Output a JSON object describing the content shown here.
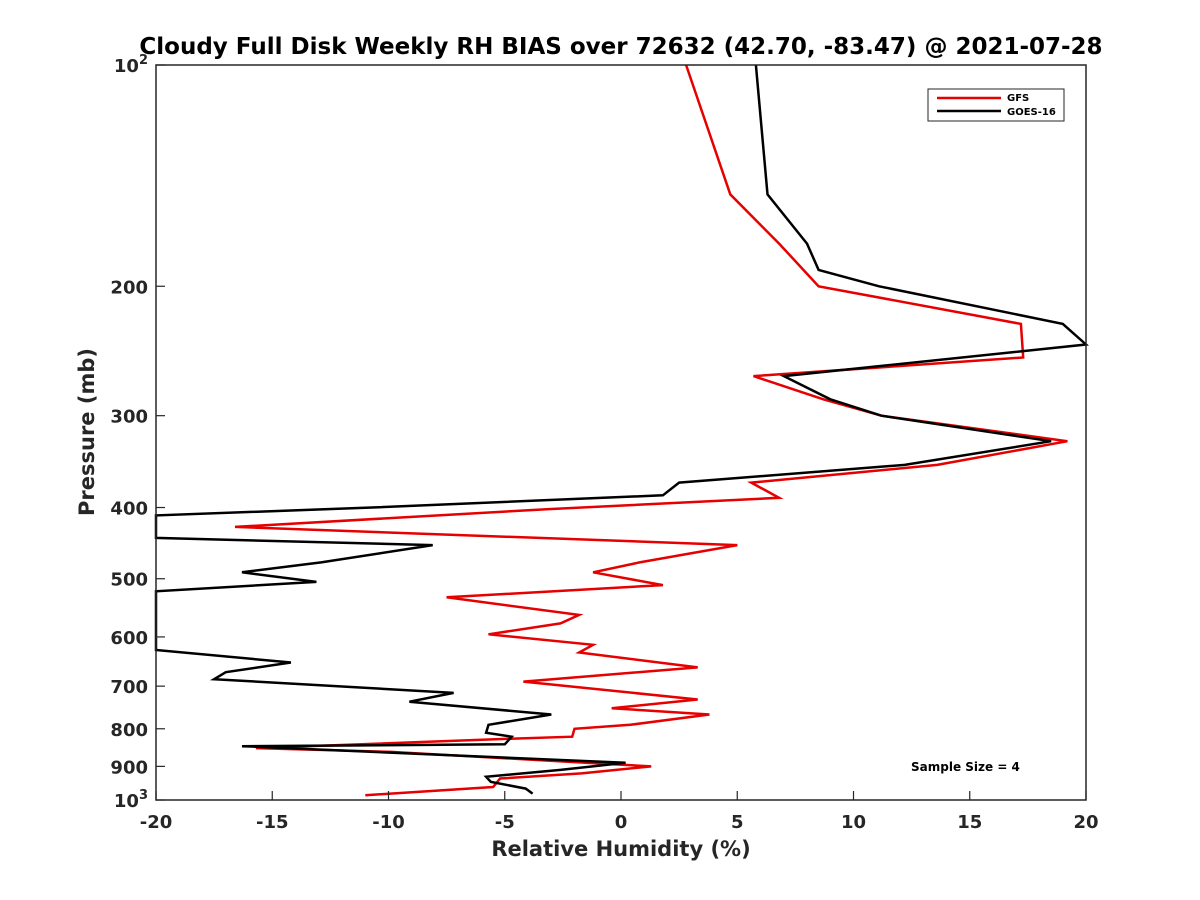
{
  "chart_data": {
    "type": "line",
    "title": "Cloudy Full Disk Weekly RH BIAS over 72632 (42.70, -83.47) @ 2021-07-28",
    "xlabel": "Relative Humidity (%)",
    "ylabel": "Pressure (mb)",
    "xlim": [
      -20,
      20
    ],
    "ylim": [
      100,
      1000
    ],
    "y_scale": "log",
    "y_reversed": true,
    "grid": false,
    "legend_position": "top-right",
    "x_ticks": [
      "-20",
      "-15",
      "-10",
      "-5",
      "0",
      "5",
      "10",
      "15",
      "20"
    ],
    "y_ticks": [
      {
        "value": 100,
        "base": "10",
        "exp": "2"
      },
      {
        "value": 200,
        "label": "200"
      },
      {
        "value": 300,
        "label": "300"
      },
      {
        "value": 400,
        "label": "400"
      },
      {
        "value": 500,
        "label": "500"
      },
      {
        "value": 600,
        "label": "600"
      },
      {
        "value": 700,
        "label": "700"
      },
      {
        "value": 800,
        "label": "800"
      },
      {
        "value": 900,
        "label": "900"
      },
      {
        "value": 1000,
        "base": "10",
        "exp": "3"
      }
    ],
    "series": [
      {
        "name": "GFS",
        "color": "#e60000",
        "points": [
          [
            2.8,
            100
          ],
          [
            4.7,
            150
          ],
          [
            6.8,
            175
          ],
          [
            8.5,
            200
          ],
          [
            17.2,
            225
          ],
          [
            17.3,
            250
          ],
          [
            5.7,
            265
          ],
          [
            8.7,
            285
          ],
          [
            11.2,
            300
          ],
          [
            19.2,
            325
          ],
          [
            13.6,
            350
          ],
          [
            5.6,
            370
          ],
          [
            6.8,
            388
          ],
          [
            -3.1,
            402
          ],
          [
            -16.6,
            425
          ],
          [
            5.0,
            450
          ],
          [
            0.8,
            475
          ],
          [
            -1.2,
            490
          ],
          [
            1.8,
            510
          ],
          [
            -7.5,
            530
          ],
          [
            -1.8,
            560
          ],
          [
            -2.6,
            575
          ],
          [
            -5.7,
            595
          ],
          [
            -1.2,
            615
          ],
          [
            -1.8,
            630
          ],
          [
            3.3,
            660
          ],
          [
            -4.2,
            690
          ],
          [
            3.3,
            730
          ],
          [
            -0.4,
            750
          ],
          [
            3.8,
            765
          ],
          [
            0.4,
            790
          ],
          [
            -2.0,
            800
          ],
          [
            -2.1,
            820
          ],
          [
            -4.6,
            825
          ],
          [
            -15.7,
            850
          ],
          [
            -9.9,
            860
          ],
          [
            1.3,
            900
          ],
          [
            -1.7,
            920
          ],
          [
            -5.2,
            935
          ],
          [
            -5.5,
            960
          ],
          [
            -11.0,
            985
          ]
        ]
      },
      {
        "name": "GOES-16",
        "color": "#000000",
        "points": [
          [
            5.8,
            100
          ],
          [
            6.3,
            150
          ],
          [
            8.0,
            175
          ],
          [
            8.5,
            190
          ],
          [
            11.1,
            200
          ],
          [
            19.0,
            225
          ],
          [
            20.0,
            240
          ],
          [
            7.0,
            265
          ],
          [
            9.0,
            285
          ],
          [
            11.2,
            300
          ],
          [
            18.5,
            325
          ],
          [
            12.2,
            350
          ],
          [
            2.5,
            370
          ],
          [
            1.8,
            385
          ],
          [
            -10.7,
            400
          ],
          [
            -20.0,
            410
          ],
          [
            -20.0,
            440
          ],
          [
            -8.1,
            450
          ],
          [
            -12.9,
            475
          ],
          [
            -16.3,
            490
          ],
          [
            -13.1,
            505
          ],
          [
            -20.0,
            520
          ],
          [
            -20.0,
            625
          ],
          [
            -14.2,
            650
          ],
          [
            -17.0,
            670
          ],
          [
            -17.5,
            685
          ],
          [
            -7.2,
            715
          ],
          [
            -9.1,
            735
          ],
          [
            -3.0,
            765
          ],
          [
            -5.7,
            790
          ],
          [
            -5.8,
            810
          ],
          [
            -4.7,
            820
          ],
          [
            -5.0,
            840
          ],
          [
            -16.3,
            845
          ],
          [
            0.2,
            890
          ],
          [
            -2.6,
            910
          ],
          [
            -5.8,
            930
          ],
          [
            -5.6,
            945
          ],
          [
            -4.1,
            965
          ],
          [
            -3.8,
            980
          ]
        ]
      }
    ],
    "annotations": [
      "Sample Size = 4"
    ]
  }
}
